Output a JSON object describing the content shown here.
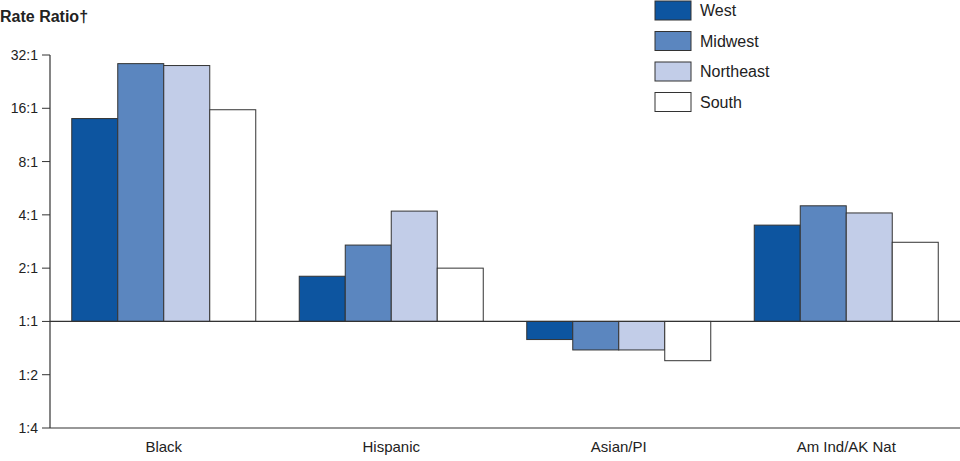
{
  "chart_data": {
    "type": "bar",
    "y_label": "Rate Ratio†",
    "categories": [
      "Black",
      "Hispanic",
      "Asian/PI",
      "Am Ind/AK Nat"
    ],
    "series": [
      {
        "name": "West",
        "color": "#0d55a0",
        "values": [
          14.0,
          1.8,
          0.79,
          3.5
        ]
      },
      {
        "name": "Midwest",
        "color": "#5b86bf",
        "values": [
          28.6,
          2.7,
          0.69,
          4.5
        ]
      },
      {
        "name": "Northeast",
        "color": "#c2cde8",
        "values": [
          27.9,
          4.2,
          0.69,
          4.1
        ]
      },
      {
        "name": "South",
        "color": "#ffffff",
        "values": [
          15.7,
          2.0,
          0.6,
          2.8
        ]
      }
    ],
    "ylim": [
      0.25,
      32
    ],
    "yticks": [
      {
        "value": 0.25,
        "label": "1:4"
      },
      {
        "value": 0.5,
        "label": "1:2"
      },
      {
        "value": 1,
        "label": "1:1"
      },
      {
        "value": 2,
        "label": "2:1"
      },
      {
        "value": 4,
        "label": "4:1"
      },
      {
        "value": 8,
        "label": "8:1"
      },
      {
        "value": 16,
        "label": "16:1"
      },
      {
        "value": 32,
        "label": "32:1"
      }
    ],
    "log": "y",
    "grid": false,
    "legend": "top-right"
  }
}
